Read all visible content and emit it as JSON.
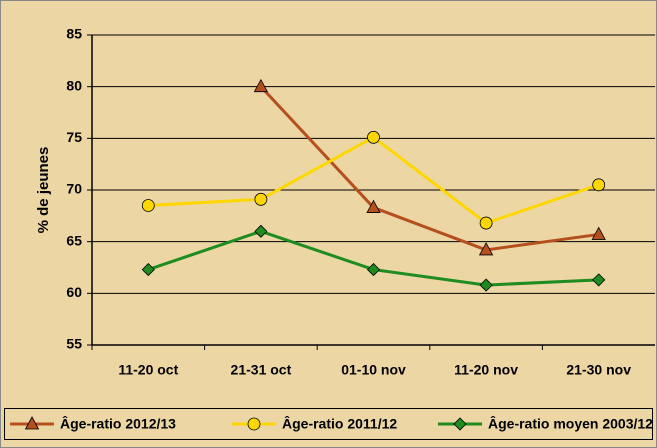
{
  "chart_data": {
    "type": "line",
    "y_label": "% de jeunes",
    "categories": [
      "11-20 oct",
      "21-31 oct",
      "01-10 nov",
      "11-20 nov",
      "21-30 nov"
    ],
    "series": [
      {
        "name": "Âge-ratio 2012/13",
        "color": "#b5501e",
        "marker": "triangle",
        "values": [
          null,
          80,
          68.3,
          64.2,
          65.7
        ]
      },
      {
        "name": "Âge-ratio 2011/12",
        "color": "#ffd700",
        "marker": "circle",
        "values": [
          68.5,
          69.1,
          75.1,
          66.8,
          70.5
        ]
      },
      {
        "name": "Âge-ratio moyen 2003/12",
        "color": "#1e8c1e",
        "marker": "diamond",
        "values": [
          62.3,
          66.0,
          62.3,
          60.8,
          61.3
        ]
      }
    ],
    "ylim": [
      55,
      85
    ],
    "yticks": [
      55,
      60,
      65,
      70,
      75,
      80,
      85
    ],
    "grid": true,
    "legend": "bottom"
  }
}
